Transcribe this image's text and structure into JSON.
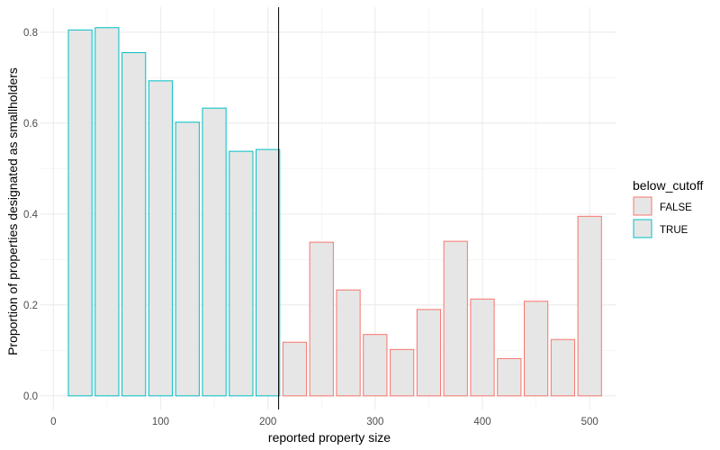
{
  "chart_data": {
    "type": "bar",
    "xlabel": "reported property size",
    "ylabel": "Proportion of properties designated as smallholders",
    "xlim": [
      -12,
      525
    ],
    "ylim": [
      -0.03,
      0.855
    ],
    "x_ticks": [
      0,
      100,
      200,
      300,
      400,
      500
    ],
    "x_tick_labels": [
      "0",
      "100",
      "200",
      "300",
      "400",
      "500"
    ],
    "y_ticks": [
      0.0,
      0.2,
      0.4,
      0.6,
      0.8
    ],
    "y_tick_labels": [
      "0.0",
      "0.2",
      "0.4",
      "0.6",
      "0.8"
    ],
    "bar_width": 22,
    "cutoff_line_x": 210,
    "grid": true,
    "legend": {
      "title": "below_cutoff",
      "placement": "right",
      "entries": [
        {
          "label": "FALSE",
          "color": "#F8766D"
        },
        {
          "label": "TRUE",
          "color": "#00BFC4"
        }
      ]
    },
    "fill_color": "#e6e6e6",
    "series": [
      {
        "name": "TRUE",
        "color": "#00BFC4",
        "x": [
          25,
          50,
          75,
          100,
          125,
          150,
          175,
          200
        ],
        "values": [
          0.805,
          0.81,
          0.755,
          0.693,
          0.602,
          0.633,
          0.538,
          0.542
        ]
      },
      {
        "name": "FALSE",
        "color": "#F8766D",
        "x": [
          225,
          250,
          275,
          300,
          325,
          350,
          375,
          400,
          425,
          450,
          475,
          500
        ],
        "values": [
          0.118,
          0.338,
          0.233,
          0.135,
          0.102,
          0.19,
          0.34,
          0.213,
          0.082,
          0.208,
          0.124,
          0.395
        ]
      }
    ]
  }
}
